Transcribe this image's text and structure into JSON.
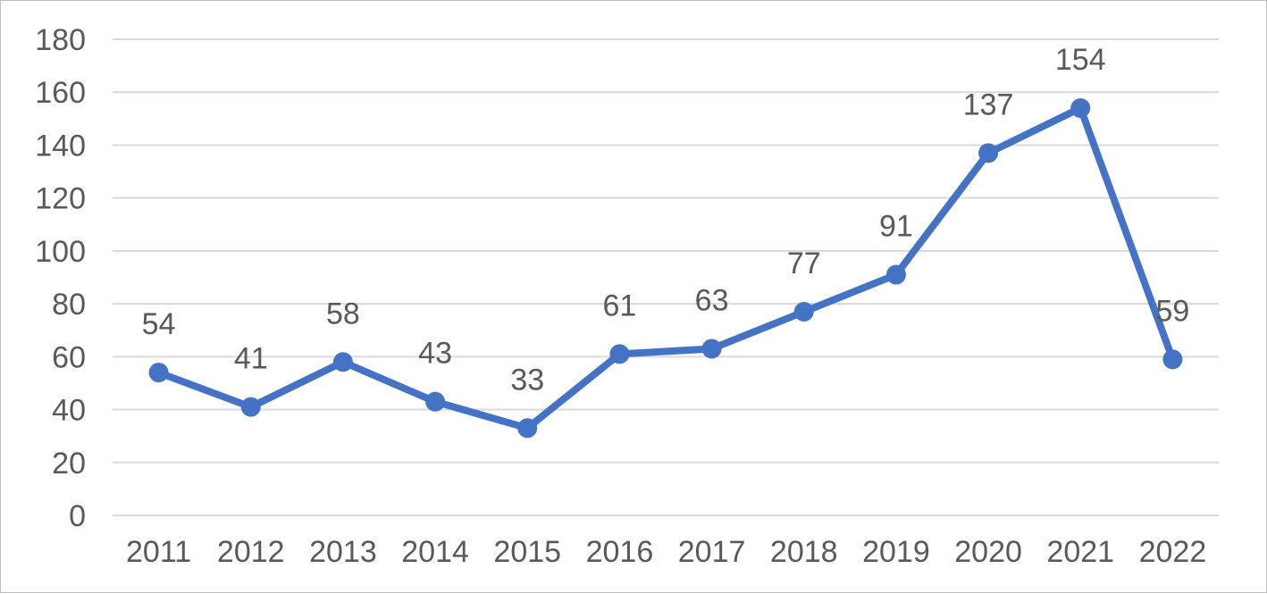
{
  "chart_data": {
    "type": "line",
    "title": "",
    "xlabel": "",
    "ylabel": "",
    "categories": [
      "2011",
      "2012",
      "2013",
      "2014",
      "2015",
      "2016",
      "2017",
      "2018",
      "2019",
      "2020",
      "2021",
      "2022"
    ],
    "series": [
      {
        "values": [
          54,
          41,
          58,
          43,
          33,
          61,
          63,
          77,
          91,
          137,
          154,
          59
        ],
        "color": "#4472c4"
      }
    ],
    "ylim": [
      0,
      180
    ],
    "yticks": [
      0,
      20,
      40,
      60,
      80,
      100,
      120,
      140,
      160,
      180
    ],
    "ytick_labels": [
      "0",
      "20",
      "40",
      "60",
      "80",
      "100",
      "120",
      "140",
      "160",
      "180"
    ],
    "grid": true,
    "legend": "none",
    "data_labels": true
  }
}
